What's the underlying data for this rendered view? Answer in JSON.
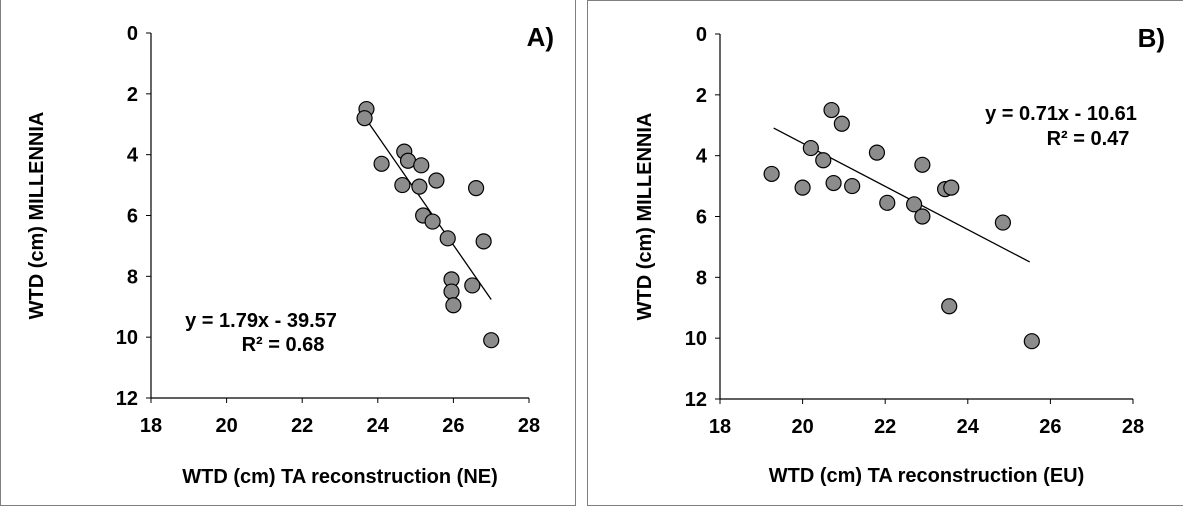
{
  "colors": {
    "marker_fill": "#8c8c8c",
    "marker_stroke": "#000000",
    "axis": "#000000",
    "trendline": "#000000"
  },
  "chart_data": [
    {
      "type": "scatter",
      "panel_label": "A)",
      "xlabel": "WTD (cm) TA reconstruction (NE)",
      "ylabel": "WTD (cm) MILLENNIA",
      "xlim": [
        18,
        28
      ],
      "ylim": [
        0,
        12
      ],
      "y_inverted": true,
      "x_ticks": [
        "18",
        "20",
        "22",
        "24",
        "26",
        "28"
      ],
      "y_ticks": [
        "0",
        "2",
        "4",
        "6",
        "8",
        "10",
        "12"
      ],
      "grid": false,
      "legend": "none",
      "trendline": {
        "slope": 1.79,
        "intercept": -39.57,
        "x_range": [
          23.7,
          27.0
        ]
      },
      "equation": "y = 1.79x - 39.57",
      "r_squared": "R² = 0.68",
      "points": [
        [
          23.7,
          2.5
        ],
        [
          23.65,
          2.8
        ],
        [
          24.1,
          4.3
        ],
        [
          24.7,
          3.9
        ],
        [
          24.8,
          4.2
        ],
        [
          24.65,
          5.0
        ],
        [
          25.15,
          4.35
        ],
        [
          25.1,
          5.05
        ],
        [
          25.55,
          4.85
        ],
        [
          25.2,
          6.0
        ],
        [
          25.45,
          6.2
        ],
        [
          25.85,
          6.75
        ],
        [
          26.6,
          5.1
        ],
        [
          25.95,
          8.1
        ],
        [
          25.95,
          8.5
        ],
        [
          26.0,
          8.95
        ],
        [
          26.5,
          8.3
        ],
        [
          26.8,
          6.85
        ],
        [
          27.0,
          10.1
        ]
      ]
    },
    {
      "type": "scatter",
      "panel_label": "B)",
      "xlabel": "WTD (cm) TA reconstruction (EU)",
      "ylabel": "WTD (cm) MILLENNIA",
      "xlim": [
        18,
        28
      ],
      "ylim": [
        0,
        12
      ],
      "y_inverted": true,
      "x_ticks": [
        "18",
        "20",
        "22",
        "24",
        "26",
        "28"
      ],
      "y_ticks": [
        "0",
        "2",
        "4",
        "6",
        "8",
        "10",
        "12"
      ],
      "grid": false,
      "legend": "none",
      "trendline": {
        "slope": 0.71,
        "intercept": -10.61,
        "x_range": [
          19.3,
          25.5
        ]
      },
      "equation": "y = 0.71x - 10.61",
      "r_squared": "R² = 0.47",
      "points": [
        [
          19.25,
          4.6
        ],
        [
          20.0,
          5.05
        ],
        [
          20.2,
          3.75
        ],
        [
          20.5,
          4.15
        ],
        [
          20.7,
          2.5
        ],
        [
          20.75,
          4.9
        ],
        [
          20.95,
          2.95
        ],
        [
          21.2,
          5.0
        ],
        [
          21.8,
          3.9
        ],
        [
          22.05,
          5.55
        ],
        [
          22.7,
          5.6
        ],
        [
          22.9,
          4.3
        ],
        [
          22.9,
          6.0
        ],
        [
          23.45,
          5.1
        ],
        [
          23.6,
          5.05
        ],
        [
          23.55,
          8.95
        ],
        [
          24.85,
          6.2
        ],
        [
          25.55,
          10.1
        ]
      ]
    }
  ]
}
